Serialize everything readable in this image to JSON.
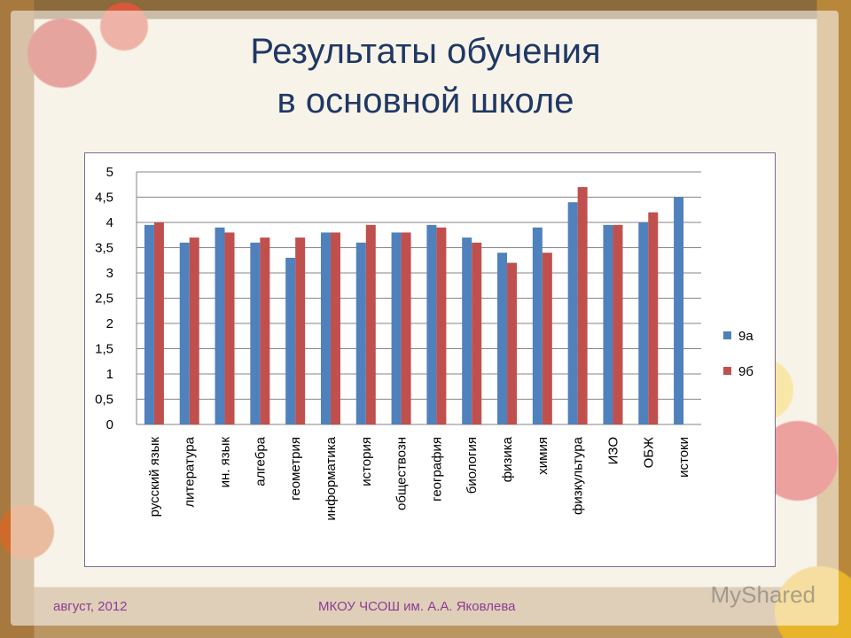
{
  "slide": {
    "title_line1": "Результаты обучения",
    "title_line2": "в основной школе",
    "footer_left": "август, 2012",
    "footer_center": "МКОУ ЧСОШ им. А.А. Яковлева",
    "watermark": "MyShared"
  },
  "chart_data": {
    "type": "bar",
    "categories": [
      "русский язык",
      "литература",
      "ин. язык",
      "алгебра",
      "геометрия",
      "информатика",
      "история",
      "обществозн",
      "география",
      "биология",
      "физика",
      "химия",
      "физкультура",
      "ИЗО",
      "ОБЖ",
      "истоки"
    ],
    "series": [
      {
        "name": "9а",
        "color": "#4f81bd",
        "values": [
          3.95,
          3.6,
          3.9,
          3.6,
          3.3,
          3.8,
          3.6,
          3.8,
          3.95,
          3.7,
          3.4,
          3.9,
          4.4,
          3.95,
          4.0,
          4.5
        ]
      },
      {
        "name": "9б",
        "color": "#c0504d",
        "values": [
          4.0,
          3.7,
          3.8,
          3.7,
          3.7,
          3.8,
          3.95,
          3.8,
          3.9,
          3.6,
          3.2,
          3.4,
          4.7,
          3.95,
          4.2,
          null
        ]
      }
    ],
    "ylim": [
      0,
      5
    ],
    "yticks": [
      "0",
      "0,5",
      "1",
      "1,5",
      "2",
      "2,5",
      "3",
      "3,5",
      "4",
      "4,5",
      "5"
    ],
    "grid": true,
    "legend": "right"
  }
}
